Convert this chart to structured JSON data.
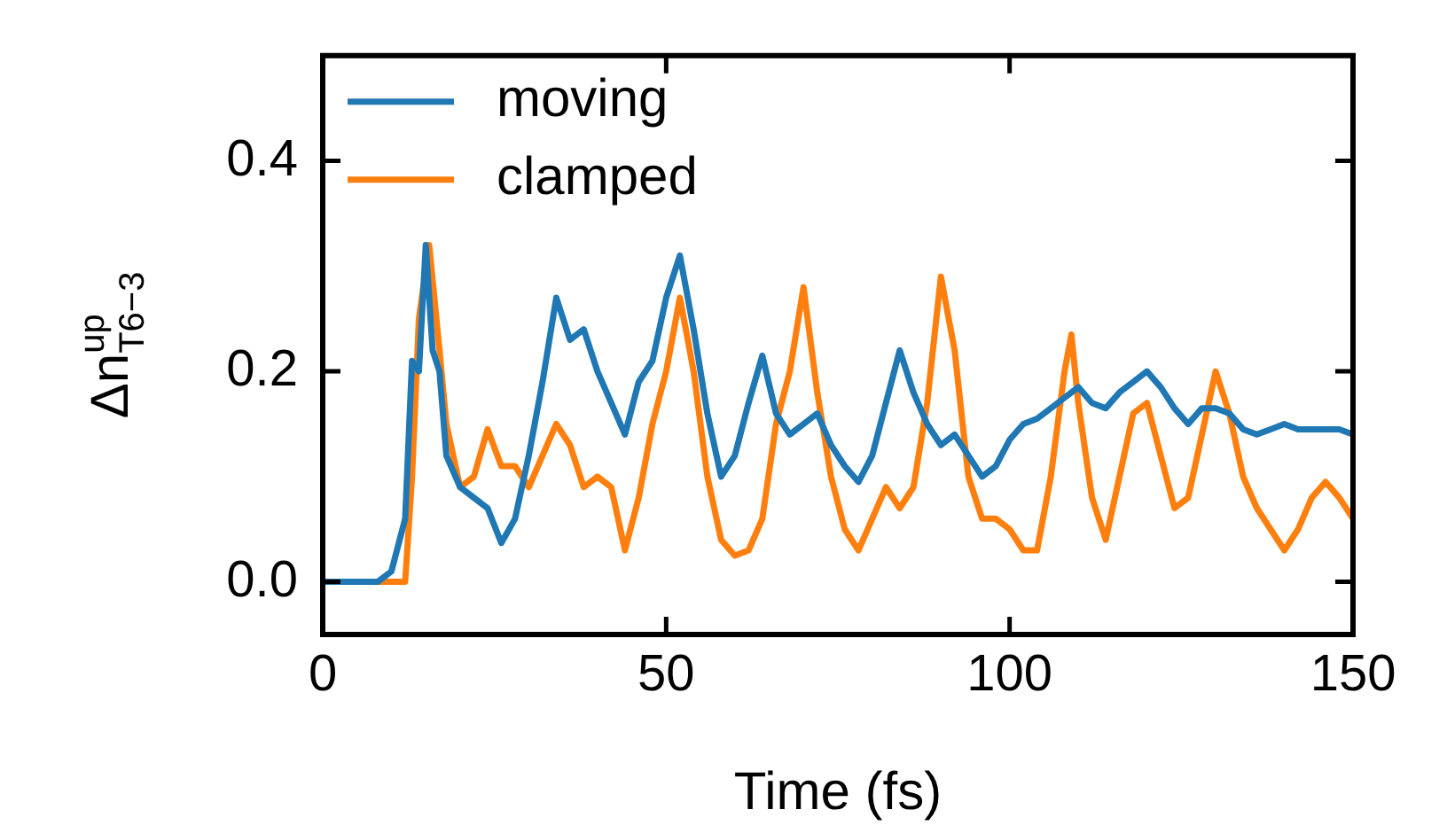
{
  "chart_data": {
    "type": "line",
    "xlabel": "Time (fs)",
    "ylabel": "Δn$^{up}$$_{T6−3}$",
    "xlim": [
      0,
      150
    ],
    "xticks": [
      0,
      50,
      100,
      150
    ],
    "ylim": [
      -0.05,
      0.5
    ],
    "yticks": [
      {
        "value": 0,
        "label": "0.0"
      },
      {
        "value": 0.2,
        "label": "0.2"
      },
      {
        "value": 0.4,
        "label": "0.4"
      }
    ],
    "grid": false,
    "legend": "top left",
    "marker": "none",
    "line_style": "solid",
    "series": [
      {
        "name": "moving",
        "color": "#1f77b4",
        "x": [
          0,
          8,
          10,
          12,
          13,
          14,
          15,
          16,
          17,
          18,
          20,
          22,
          24,
          26,
          28,
          30,
          32,
          34,
          36,
          38,
          40,
          42,
          44,
          46,
          48,
          50,
          52,
          54,
          56,
          58,
          60,
          62,
          64,
          66,
          68,
          70,
          72,
          74,
          76,
          78,
          80,
          82,
          84,
          86,
          88,
          90,
          92,
          94,
          96,
          98,
          100,
          102,
          104,
          106,
          108,
          110,
          112,
          114,
          116,
          118,
          120,
          122,
          124,
          126,
          128,
          130,
          132,
          134,
          136,
          138,
          140,
          142,
          144,
          146,
          148,
          150
        ],
        "values": [
          0,
          0,
          0.01,
          0.06,
          0.21,
          0.2,
          0.32,
          0.22,
          0.2,
          0.12,
          0.09,
          0.08,
          0.07,
          0.037,
          0.06,
          0.12,
          0.19,
          0.27,
          0.23,
          0.24,
          0.2,
          0.17,
          0.14,
          0.19,
          0.21,
          0.27,
          0.31,
          0.24,
          0.16,
          0.1,
          0.12,
          0.17,
          0.215,
          0.16,
          0.14,
          0.15,
          0.16,
          0.13,
          0.11,
          0.095,
          0.12,
          0.17,
          0.22,
          0.18,
          0.15,
          0.13,
          0.14,
          0.12,
          0.1,
          0.11,
          0.135,
          0.15,
          0.155,
          0.165,
          0.175,
          0.185,
          0.17,
          0.165,
          0.18,
          0.19,
          0.2,
          0.185,
          0.165,
          0.15,
          0.165,
          0.165,
          0.16,
          0.145,
          0.14,
          0.145,
          0.15,
          0.145,
          0.145,
          0.145,
          0.145,
          0.14
        ]
      },
      {
        "name": "clamped",
        "color": "#ff7f0e",
        "x": [
          0,
          12,
          13,
          14,
          15.5,
          17,
          18,
          20,
          22,
          24,
          26,
          28,
          30,
          32,
          34,
          36,
          38,
          40,
          42,
          44,
          46,
          48,
          50,
          52,
          54,
          56,
          58,
          60,
          62,
          64,
          66,
          68,
          70,
          72,
          74,
          76,
          78,
          80,
          82,
          84,
          86,
          88,
          90,
          92,
          94,
          96,
          98,
          100,
          102,
          104,
          106,
          108,
          109,
          110,
          112,
          114,
          116,
          118,
          120,
          122,
          124,
          126,
          128,
          130,
          132,
          134,
          136,
          138,
          140,
          142,
          144,
          146,
          148,
          150
        ],
        "values": [
          0,
          0,
          0.1,
          0.25,
          0.32,
          0.22,
          0.15,
          0.09,
          0.1,
          0.145,
          0.11,
          0.11,
          0.09,
          0.12,
          0.15,
          0.13,
          0.09,
          0.1,
          0.09,
          0.03,
          0.08,
          0.15,
          0.2,
          0.27,
          0.2,
          0.1,
          0.04,
          0.025,
          0.03,
          0.06,
          0.15,
          0.2,
          0.28,
          0.18,
          0.1,
          0.05,
          0.03,
          0.06,
          0.09,
          0.07,
          0.09,
          0.17,
          0.29,
          0.22,
          0.1,
          0.06,
          0.06,
          0.05,
          0.03,
          0.03,
          0.1,
          0.2,
          0.235,
          0.17,
          0.08,
          0.04,
          0.1,
          0.16,
          0.17,
          0.12,
          0.07,
          0.08,
          0.14,
          0.2,
          0.16,
          0.1,
          0.07,
          0.05,
          0.03,
          0.05,
          0.08,
          0.095,
          0.08,
          0.06
        ]
      }
    ]
  }
}
